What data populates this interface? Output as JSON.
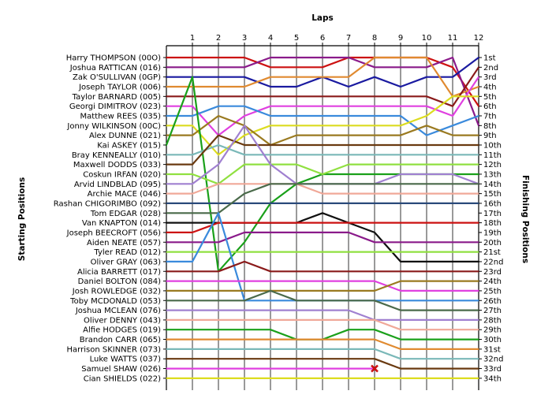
{
  "chart_data": {
    "type": "line",
    "title": "",
    "x_title": "Laps",
    "y_left_title": "Starting Positions",
    "y_right_title": "Finishing Positions",
    "laps": [
      1,
      2,
      3,
      4,
      5,
      6,
      7,
      8,
      9,
      10,
      11,
      12
    ],
    "grid": {
      "vertical": true,
      "horizontal": false
    },
    "finishing_labels": [
      "1st",
      "2nd",
      "3rd",
      "4th",
      "5th",
      "6th",
      "7th",
      "8th",
      "9th",
      "10th",
      "11th",
      "12th",
      "13th",
      "14th",
      "15th",
      "16th",
      "17th",
      "18th",
      "19th",
      "20th",
      "21st",
      "22nd",
      "23rd",
      "24th",
      "25th",
      "26th",
      "27th",
      "28th",
      "29th",
      "30th",
      "31st",
      "32nd",
      "33rd",
      "34th"
    ],
    "series": [
      {
        "name": "Harry THOMPSON (00O)",
        "color": "#cc1111",
        "positions": [
          1,
          1,
          1,
          2,
          2,
          2,
          1,
          1,
          1,
          1,
          2,
          6
        ]
      },
      {
        "name": "Joshua RATTICAN (016)",
        "color": "#8a1a8a",
        "positions": [
          2,
          2,
          2,
          1,
          1,
          1,
          1,
          2,
          2,
          2,
          1,
          8
        ]
      },
      {
        "name": "Zak O'SULLIVAN (0GP)",
        "color": "#1a1aa0",
        "positions": [
          3,
          3,
          3,
          4,
          4,
          3,
          4,
          3,
          4,
          3,
          3,
          1
        ]
      },
      {
        "name": "Joseph TAYLOR (006)",
        "color": "#e08a30",
        "positions": [
          4,
          4,
          4,
          3,
          3,
          3,
          3,
          1,
          1,
          1,
          5,
          4
        ]
      },
      {
        "name": "Taylor BARNARD (005)",
        "color": "#8a1a1a",
        "positions": [
          5,
          5,
          5,
          5,
          5,
          5,
          5,
          5,
          5,
          5,
          6,
          2
        ]
      },
      {
        "name": "Georgi DIMITROV (023)",
        "color": "#e040e0",
        "positions": [
          6,
          9,
          7,
          6,
          6,
          6,
          6,
          6,
          6,
          6,
          7,
          3
        ]
      },
      {
        "name": "Matthew REES (035)",
        "color": "#3a8adc",
        "positions": [
          7,
          6,
          6,
          7,
          7,
          7,
          7,
          7,
          7,
          9,
          8,
          7
        ]
      },
      {
        "name": "Jonny WILKINSON (00C)",
        "color": "#dcdc20",
        "positions": [
          8,
          11,
          9,
          8,
          8,
          8,
          8,
          8,
          8,
          7,
          5,
          5
        ]
      },
      {
        "name": "Alex DUNNE (021)",
        "color": "#9a7a20",
        "positions": [
          9,
          7,
          8,
          10,
          9,
          9,
          9,
          9,
          9,
          8,
          9,
          9
        ]
      },
      {
        "name": "Kai ASKEY (015)",
        "color": "#1aa01a",
        "positions": [
          3,
          23,
          20,
          16,
          14,
          13,
          13,
          13,
          13,
          13,
          13,
          13
        ]
      },
      {
        "name": "Bray KENNEALLY (010)",
        "color": "#7ab8b8",
        "positions": [
          11,
          10,
          11,
          11,
          11,
          11,
          11,
          11,
          11,
          11,
          11,
          11
        ]
      },
      {
        "name": "Maxwell DODDS (033)",
        "color": "#6a3a10",
        "positions": [
          12,
          9,
          10,
          10,
          10,
          10,
          10,
          10,
          10,
          10,
          10,
          10
        ]
      },
      {
        "name": "Coskun IRFAN (020)",
        "color": "#90e040",
        "positions": [
          13,
          14,
          12,
          12,
          12,
          13,
          12,
          12,
          12,
          12,
          12,
          12
        ]
      },
      {
        "name": "Arvid LINDBLAD (095)",
        "color": "#a080d0",
        "positions": [
          14,
          12,
          8,
          12,
          14,
          14,
          14,
          14,
          13,
          13,
          13,
          14
        ]
      },
      {
        "name": "Archie MACE (046)",
        "color": "#f0a898",
        "positions": [
          15,
          14,
          14,
          14,
          14,
          15,
          15,
          15,
          15,
          15,
          15,
          15
        ]
      },
      {
        "name": "Rashan CHIGORIMBO (092)",
        "color": "#2a4a7a",
        "positions": [
          16,
          16,
          16,
          16,
          16,
          16,
          16,
          16,
          16,
          16,
          16,
          16
        ]
      },
      {
        "name": "Tom EDGAR (028)",
        "color": "#4a6a4a",
        "positions": [
          17,
          17,
          15,
          14,
          14,
          14,
          14,
          14,
          14,
          14,
          14,
          14
        ]
      },
      {
        "name": "Van KNAPTON (014)",
        "color": "#101010",
        "positions": [
          18,
          18,
          18,
          18,
          18,
          17,
          18,
          19,
          22,
          22,
          22,
          22
        ]
      },
      {
        "name": "Joseph BEECROFT (056)",
        "color": "#cc1111",
        "positions": [
          19,
          18,
          18,
          18,
          18,
          18,
          18,
          18,
          18,
          18,
          18,
          18
        ]
      },
      {
        "name": "Aiden NEATE (057)",
        "color": "#8a1a8a",
        "positions": [
          20,
          20,
          19,
          19,
          19,
          19,
          19,
          20,
          20,
          20,
          20,
          20
        ]
      },
      {
        "name": "Tyler READ (012)",
        "color": "#90e040",
        "positions": [
          21,
          21,
          21,
          21,
          21,
          21,
          21,
          21,
          21,
          21,
          21,
          21
        ]
      },
      {
        "name": "Oliver GRAY (063)",
        "color": "#3a8adc",
        "positions": [
          22,
          17,
          26,
          26,
          26,
          26,
          26,
          26,
          26,
          26,
          26,
          26
        ]
      },
      {
        "name": "Alicia BARRETT (017)",
        "color": "#8a1a1a",
        "positions": [
          23,
          23,
          22,
          23,
          23,
          23,
          23,
          23,
          23,
          23,
          23,
          23
        ]
      },
      {
        "name": "Daniel BOLTON (084)",
        "color": "#e040e0",
        "positions": [
          24,
          24,
          24,
          24,
          24,
          24,
          24,
          24,
          25,
          25,
          25,
          25
        ]
      },
      {
        "name": "Josh ROWLEDGE (032)",
        "color": "#9a7a20",
        "positions": [
          25,
          25,
          25,
          25,
          25,
          25,
          25,
          25,
          24,
          24,
          24,
          24
        ]
      },
      {
        "name": "Toby MCDONALD (053)",
        "color": "#4a6a4a",
        "positions": [
          26,
          26,
          26,
          25,
          26,
          26,
          26,
          26,
          27,
          27,
          27,
          27
        ]
      },
      {
        "name": "Joshua MCLEAN (076)",
        "color": "#a080d0",
        "positions": [
          27,
          27,
          27,
          27,
          27,
          27,
          27,
          28,
          28,
          28,
          28,
          28
        ]
      },
      {
        "name": "Oliver DENNY (043)",
        "color": "#f0a898",
        "positions": [
          28,
          28,
          28,
          28,
          28,
          28,
          28,
          28,
          29,
          29,
          29,
          29
        ]
      },
      {
        "name": "Alfie HODGES (019)",
        "color": "#1aa01a",
        "positions": [
          29,
          29,
          29,
          29,
          30,
          30,
          29,
          29,
          30,
          30,
          30,
          30
        ]
      },
      {
        "name": "Brandon CARR (065)",
        "color": "#e08a30",
        "positions": [
          30,
          30,
          30,
          30,
          30,
          30,
          30,
          30,
          31,
          31,
          31,
          31
        ]
      },
      {
        "name": "Harrison SKINNER (073)",
        "color": "#7ab8b8",
        "positions": [
          31,
          31,
          31,
          31,
          31,
          31,
          31,
          31,
          32,
          32,
          32,
          32
        ]
      },
      {
        "name": "Luke WATTS (037)",
        "color": "#6a3a10",
        "positions": [
          32,
          32,
          32,
          32,
          32,
          32,
          32,
          32,
          33,
          33,
          33,
          33
        ]
      },
      {
        "name": "Samuel SHAW (026)",
        "color": "#e040e0",
        "positions": [
          33,
          33,
          33,
          33,
          33,
          33,
          33,
          33,
          null,
          null,
          null,
          null
        ]
      },
      {
        "name": "Cian SHIELDS (022)",
        "color": "#dcdc20",
        "positions": [
          34,
          34,
          34,
          34,
          34,
          34,
          34,
          34,
          34,
          34,
          34,
          34
        ]
      }
    ],
    "retirement_marker": {
      "series": "Samuel SHAW (026)",
      "lap": 8,
      "position": 33,
      "symbol": "x",
      "color": "#cc1111"
    }
  }
}
